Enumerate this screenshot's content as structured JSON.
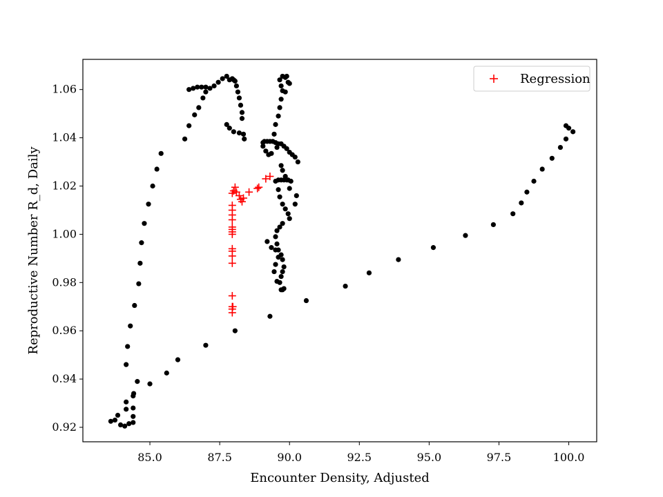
{
  "chart_data": {
    "type": "scatter",
    "xlabel": "Encounter Density, Adjusted",
    "ylabel": "Reproductive Number R_d, Daily",
    "xlim": [
      82.6,
      101.0
    ],
    "ylim": [
      0.914,
      1.0725
    ],
    "x_ticks": [
      85.0,
      87.5,
      90.0,
      92.5,
      95.0,
      97.5,
      100.0
    ],
    "x_tick_labels": [
      "85.0",
      "87.5",
      "90.0",
      "92.5",
      "95.0",
      "97.5",
      "100.0"
    ],
    "y_ticks": [
      0.92,
      0.94,
      0.96,
      0.98,
      1.0,
      1.02,
      1.04,
      1.06
    ],
    "y_tick_labels": [
      "0.92",
      "0.94",
      "0.96",
      "0.98",
      "1.00",
      "1.02",
      "1.04",
      "1.06"
    ],
    "grid": false,
    "legend": {
      "placement": "top-right",
      "entries": [
        "Regression"
      ]
    },
    "series": [
      {
        "marker": "circle",
        "color": "#000000",
        "points": [
          [
            83.6,
            0.9225
          ],
          [
            83.75,
            0.923
          ],
          [
            83.85,
            0.925
          ],
          [
            83.95,
            0.921
          ],
          [
            84.1,
            0.9205
          ],
          [
            84.25,
            0.9215
          ],
          [
            84.15,
            0.9275
          ],
          [
            84.15,
            0.9305
          ],
          [
            84.4,
            0.922
          ],
          [
            84.4,
            0.9245
          ],
          [
            84.4,
            0.928
          ],
          [
            84.4,
            0.933
          ],
          [
            84.42,
            0.934
          ],
          [
            84.55,
            0.939
          ],
          [
            84.15,
            0.946
          ],
          [
            84.2,
            0.9535
          ],
          [
            84.3,
            0.962
          ],
          [
            84.45,
            0.9705
          ],
          [
            84.6,
            0.9795
          ],
          [
            84.65,
            0.988
          ],
          [
            84.7,
            0.9965
          ],
          [
            84.8,
            1.0045
          ],
          [
            84.95,
            1.0125
          ],
          [
            85.1,
            1.02
          ],
          [
            85.25,
            1.027
          ],
          [
            85.4,
            1.0335
          ],
          [
            86.25,
            1.0395
          ],
          [
            86.4,
            1.045
          ],
          [
            86.6,
            1.0495
          ],
          [
            86.75,
            1.0525
          ],
          [
            86.9,
            1.0565
          ],
          [
            87.0,
            1.059
          ],
          [
            86.4,
            1.06
          ],
          [
            86.55,
            1.0605
          ],
          [
            86.7,
            1.061
          ],
          [
            86.85,
            1.061
          ],
          [
            87.0,
            1.061
          ],
          [
            87.15,
            1.0605
          ],
          [
            87.3,
            1.0615
          ],
          [
            87.45,
            1.063
          ],
          [
            87.6,
            1.0645
          ],
          [
            87.75,
            1.0655
          ],
          [
            87.85,
            1.064
          ],
          [
            87.95,
            1.0645
          ],
          [
            88.0,
            1.064
          ],
          [
            88.05,
            1.0635
          ],
          [
            88.1,
            1.0615
          ],
          [
            88.15,
            1.059
          ],
          [
            88.2,
            1.0565
          ],
          [
            88.25,
            1.0535
          ],
          [
            88.3,
            1.0505
          ],
          [
            88.3,
            1.048
          ],
          [
            87.75,
            1.0455
          ],
          [
            87.85,
            1.044
          ],
          [
            88.0,
            1.0425
          ],
          [
            88.2,
            1.042
          ],
          [
            88.35,
            1.0415
          ],
          [
            88.38,
            1.0395
          ],
          [
            89.1,
            1.0385
          ],
          [
            89.2,
            1.0385
          ],
          [
            89.3,
            1.0385
          ],
          [
            89.4,
            1.0385
          ],
          [
            89.5,
            1.038
          ],
          [
            89.6,
            1.0375
          ],
          [
            89.05,
            1.038
          ],
          [
            89.05,
            1.0365
          ],
          [
            89.15,
            1.0345
          ],
          [
            89.25,
            1.033
          ],
          [
            89.35,
            1.0335
          ],
          [
            89.55,
            1.036
          ],
          [
            89.7,
            1.0375
          ],
          [
            89.8,
            1.0365
          ],
          [
            89.9,
            1.0355
          ],
          [
            90.0,
            1.034
          ],
          [
            90.1,
            1.033
          ],
          [
            90.2,
            1.032
          ],
          [
            90.3,
            1.03
          ],
          [
            89.45,
            1.0415
          ],
          [
            89.5,
            1.0455
          ],
          [
            89.6,
            1.049
          ],
          [
            89.65,
            1.0525
          ],
          [
            89.7,
            1.056
          ],
          [
            89.75,
            1.0595
          ],
          [
            89.7,
            1.0615
          ],
          [
            89.65,
            1.064
          ],
          [
            89.75,
            1.0655
          ],
          [
            89.85,
            1.065
          ],
          [
            89.9,
            1.0655
          ],
          [
            89.95,
            1.063
          ],
          [
            90.0,
            1.0625
          ],
          [
            89.85,
            1.059
          ],
          [
            89.7,
            1.0285
          ],
          [
            89.75,
            1.0265
          ],
          [
            89.85,
            1.024
          ],
          [
            89.9,
            1.0225
          ],
          [
            89.5,
            1.022
          ],
          [
            89.6,
            1.0225
          ],
          [
            89.7,
            1.0225
          ],
          [
            89.8,
            1.0225
          ],
          [
            89.95,
            1.0225
          ],
          [
            90.05,
            1.022
          ],
          [
            90.0,
            1.019
          ],
          [
            89.6,
            1.0185
          ],
          [
            89.65,
            1.0155
          ],
          [
            89.75,
            1.0125
          ],
          [
            89.85,
            1.0105
          ],
          [
            89.95,
            1.0085
          ],
          [
            90.0,
            1.0065
          ],
          [
            90.2,
            1.0125
          ],
          [
            90.25,
            1.016
          ],
          [
            89.75,
            1.0045
          ],
          [
            89.65,
            1.003
          ],
          [
            89.55,
            1.0015
          ],
          [
            89.5,
            0.999
          ],
          [
            89.55,
            0.996
          ],
          [
            89.6,
            0.9935
          ],
          [
            89.7,
            0.9915
          ],
          [
            89.75,
            0.9895
          ],
          [
            89.8,
            0.9865
          ],
          [
            89.75,
            0.9845
          ],
          [
            89.7,
            0.9825
          ],
          [
            89.65,
            0.98
          ],
          [
            89.7,
            0.977
          ],
          [
            89.75,
            0.977
          ],
          [
            89.8,
            0.9775
          ],
          [
            89.55,
            0.9805
          ],
          [
            89.45,
            0.9845
          ],
          [
            89.5,
            0.9875
          ],
          [
            89.6,
            0.9905
          ],
          [
            89.5,
            0.9935
          ],
          [
            89.35,
            0.9945
          ],
          [
            89.2,
            0.997
          ],
          [
            89.3,
            0.966
          ],
          [
            88.05,
            0.96
          ],
          [
            87.0,
            0.954
          ],
          [
            86.0,
            0.948
          ],
          [
            85.6,
            0.9425
          ],
          [
            85.0,
            0.938
          ],
          [
            90.6,
            0.9725
          ],
          [
            92.0,
            0.9785
          ],
          [
            92.85,
            0.984
          ],
          [
            93.9,
            0.9895
          ],
          [
            95.15,
            0.9945
          ],
          [
            96.3,
            0.9995
          ],
          [
            97.3,
            1.004
          ],
          [
            98.0,
            1.0085
          ],
          [
            98.3,
            1.013
          ],
          [
            98.5,
            1.0175
          ],
          [
            98.75,
            1.022
          ],
          [
            99.05,
            1.027
          ],
          [
            99.4,
            1.0315
          ],
          [
            99.7,
            1.036
          ],
          [
            99.9,
            1.0395
          ],
          [
            99.9,
            1.045
          ],
          [
            100.0,
            1.044
          ],
          [
            100.15,
            1.0425
          ]
        ]
      },
      {
        "name": "Regression",
        "marker": "plus",
        "color": "#ff0000",
        "points": [
          [
            87.95,
            0.9675
          ],
          [
            87.95,
            0.969
          ],
          [
            87.95,
            0.97
          ],
          [
            87.97,
            0.97
          ],
          [
            87.95,
            0.9745
          ],
          [
            87.95,
            0.988
          ],
          [
            87.95,
            0.991
          ],
          [
            87.95,
            0.993
          ],
          [
            87.95,
            0.994
          ],
          [
            87.95,
            1.0
          ],
          [
            87.95,
            1.001
          ],
          [
            87.95,
            1.002
          ],
          [
            87.95,
            1.003
          ],
          [
            87.95,
            1.006
          ],
          [
            87.95,
            1.008
          ],
          [
            87.95,
            1.01
          ],
          [
            87.95,
            1.012
          ],
          [
            87.95,
            1.017
          ],
          [
            88.0,
            1.018
          ],
          [
            88.05,
            1.0195
          ],
          [
            88.1,
            1.0175
          ],
          [
            88.2,
            1.016
          ],
          [
            88.25,
            1.0145
          ],
          [
            88.3,
            1.0135
          ],
          [
            88.35,
            1.015
          ],
          [
            88.55,
            1.0175
          ],
          [
            88.85,
            1.019
          ],
          [
            88.9,
            1.0195
          ],
          [
            89.15,
            1.023
          ],
          [
            89.3,
            1.024
          ]
        ]
      }
    ]
  }
}
